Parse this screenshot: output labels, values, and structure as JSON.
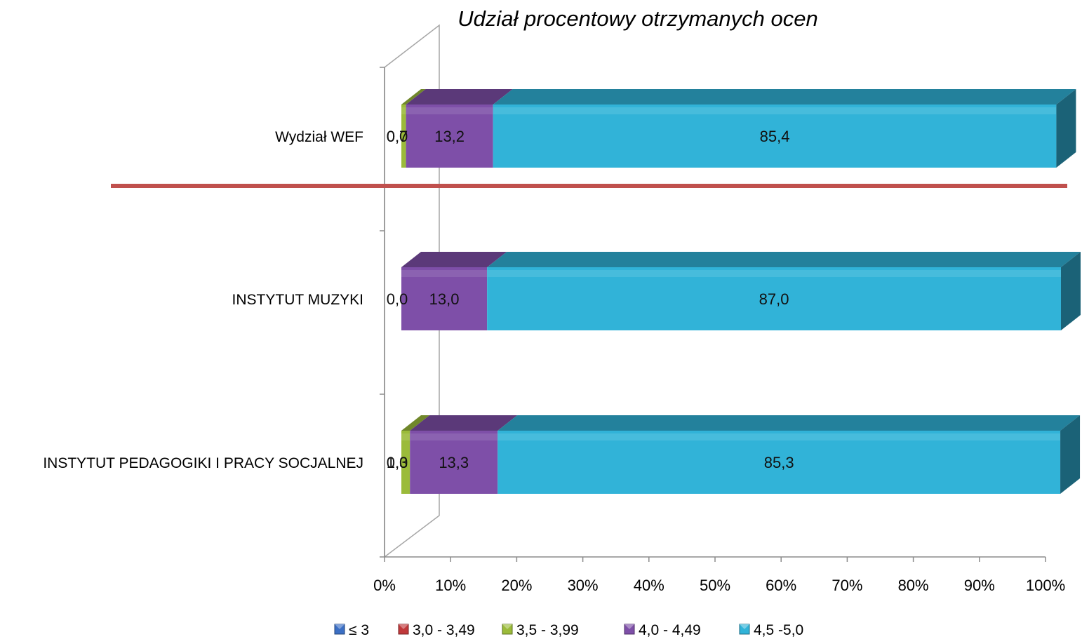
{
  "chart_data": {
    "type": "bar",
    "orientation": "horizontal",
    "stacked": "percent",
    "three_d": true,
    "title": "Udział procentowy otrzymanych ocen",
    "xlim": [
      0,
      100
    ],
    "x_ticks": [
      "0%",
      "10%",
      "20%",
      "30%",
      "40%",
      "50%",
      "60%",
      "70%",
      "80%",
      "90%",
      "100%"
    ],
    "categories": [
      "Wydział WEF",
      "INSTYTUT MUZYKI",
      "INSTYTUT PEDAGOGIKI I PRACY SOCJALNEJ"
    ],
    "series": [
      {
        "name": "≤ 3",
        "color": "#3B6FC4",
        "values": [
          0,
          0,
          0
        ],
        "labels": [
          "",
          "",
          ""
        ]
      },
      {
        "name": "3,0 - 3,49",
        "color": "#C0393B",
        "values": [
          0,
          0,
          0
        ],
        "labels": [
          "0,0",
          "",
          "0,0"
        ]
      },
      {
        "name": "3,5 - 3,99",
        "color": "#9BBB3A",
        "values": [
          0.7,
          0,
          1.3
        ],
        "labels": [
          "0,7",
          "0,0",
          "1,3"
        ]
      },
      {
        "name": "4,0 - 4,49",
        "color": "#7E4FA8",
        "values": [
          13.2,
          13.0,
          13.3
        ],
        "labels": [
          "13,2",
          "13,0",
          "13,3"
        ]
      },
      {
        "name": "4,5 -5,0",
        "color": "#31B3D8",
        "values": [
          85.4,
          87.0,
          85.3
        ],
        "labels": [
          "85,4",
          "87,0",
          "85,3"
        ]
      }
    ],
    "legend_position": "bottom",
    "grid": false
  }
}
